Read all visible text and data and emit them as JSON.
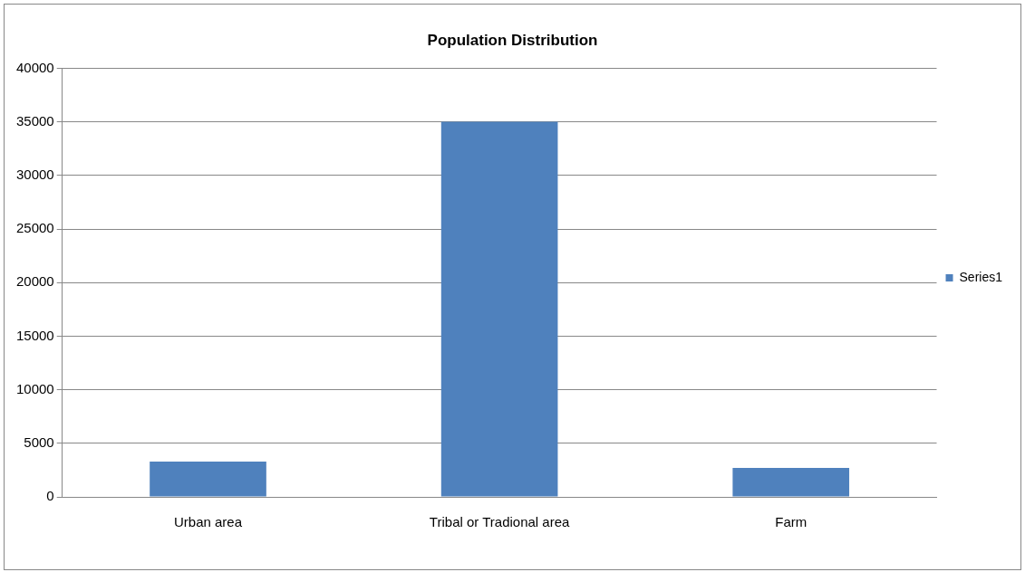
{
  "chart_data": {
    "type": "bar",
    "title": "Population Distribution",
    "categories": [
      "Urban area",
      "Tribal or Tradional area",
      "Farm"
    ],
    "series": [
      {
        "name": "Series1",
        "color": "#4f81bd",
        "values": [
          3300,
          35000,
          2700
        ]
      }
    ],
    "ylim": [
      0,
      40000
    ],
    "yticks": [
      0,
      5000,
      10000,
      15000,
      20000,
      25000,
      30000,
      35000,
      40000
    ],
    "grid": "y",
    "legend": "right"
  }
}
